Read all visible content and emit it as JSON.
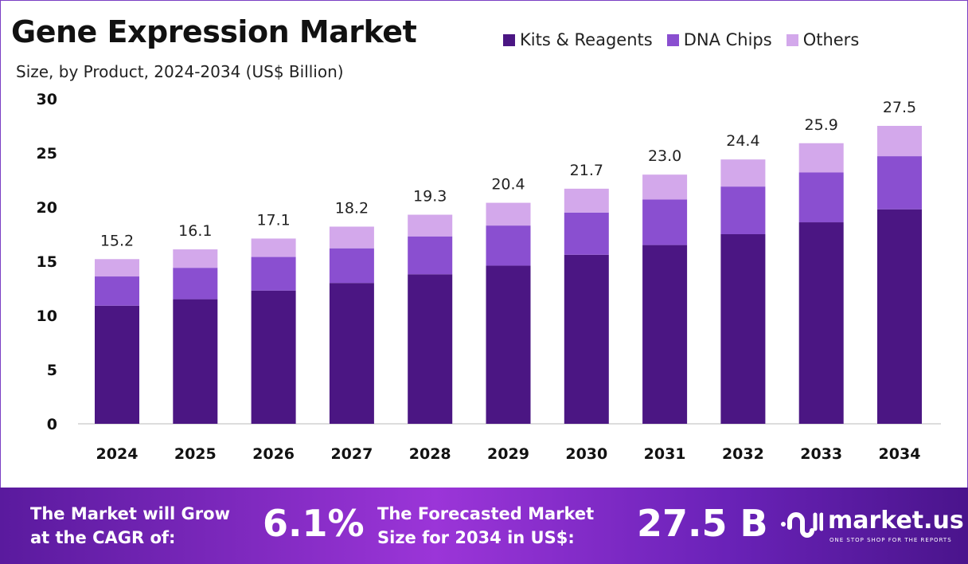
{
  "chart_data": {
    "type": "bar",
    "stacked": true,
    "title": "Gene Expression Market",
    "subtitle": "Size, by Product, 2024-2034 (US$ Billion)",
    "categories": [
      "2024",
      "2025",
      "2026",
      "2027",
      "2028",
      "2029",
      "2030",
      "2031",
      "2032",
      "2033",
      "2034"
    ],
    "series": [
      {
        "name": "Kits & Reagents",
        "color": "#4b1683",
        "values": [
          10.9,
          11.5,
          12.3,
          13.0,
          13.8,
          14.6,
          15.6,
          16.5,
          17.5,
          18.6,
          19.8
        ]
      },
      {
        "name": "DNA Chips",
        "color": "#8a4fd0",
        "values": [
          2.7,
          2.9,
          3.1,
          3.2,
          3.5,
          3.7,
          3.9,
          4.2,
          4.4,
          4.6,
          4.9
        ]
      },
      {
        "name": "Others",
        "color": "#d3a8eb",
        "values": [
          1.6,
          1.7,
          1.7,
          2.0,
          2.0,
          2.1,
          2.2,
          2.3,
          2.5,
          2.7,
          2.8
        ]
      }
    ],
    "totals": [
      "15.2",
      "16.1",
      "17.1",
      "18.2",
      "19.3",
      "20.4",
      "21.7",
      "23.0",
      "24.4",
      "25.9",
      "27.5"
    ],
    "ylim": [
      0,
      30
    ],
    "yticks": [
      "0",
      "5",
      "10",
      "15",
      "20",
      "25",
      "30"
    ],
    "grid": false,
    "legend": "top-right"
  },
  "banner": {
    "cagr_label_1": "The Market will Grow",
    "cagr_label_2": "at the CAGR of:",
    "cagr_value": "6.1%",
    "forecast_label_1": "The Forecasted Market",
    "forecast_label_2": "Size for 2034 in US$:",
    "forecast_value": "27.5 B",
    "logo_name": "market.us",
    "logo_tagline": "ONE STOP SHOP FOR THE REPORTS"
  }
}
